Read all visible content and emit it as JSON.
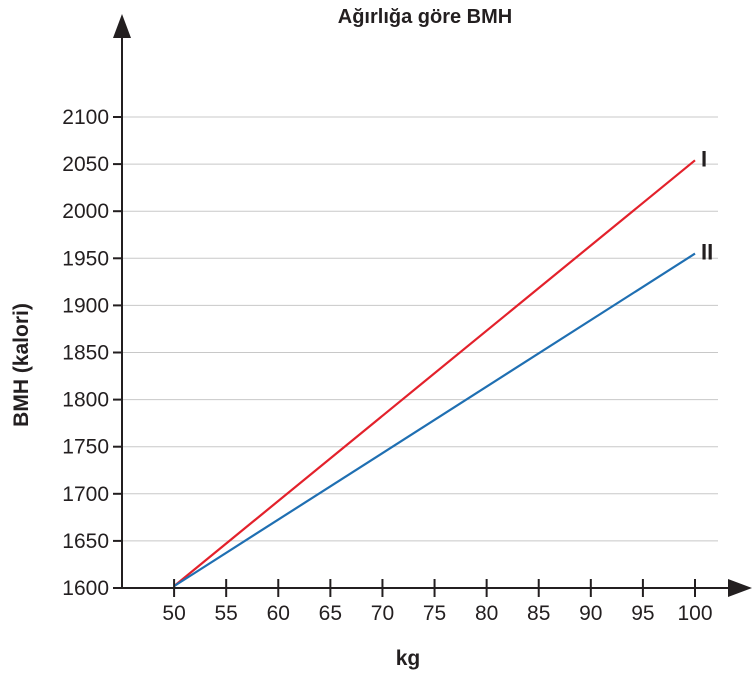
{
  "chart_data": {
    "type": "line",
    "title": "Ağırlığa göre BMH",
    "xlabel": "kg",
    "ylabel": "BMH (kalori)",
    "x_ticks": [
      50,
      55,
      60,
      65,
      70,
      75,
      80,
      85,
      90,
      95,
      100
    ],
    "y_ticks": [
      1600,
      1650,
      1700,
      1750,
      1800,
      1850,
      1900,
      1950,
      2000,
      2050,
      2100
    ],
    "xlim": [
      45,
      100
    ],
    "ylim": [
      1600,
      2100
    ],
    "grid": "horizontal",
    "series": [
      {
        "name": "I",
        "color": "#e3212b",
        "x": [
          50,
          100
        ],
        "y": [
          1602,
          2054
        ]
      },
      {
        "name": "II",
        "color": "#1f6fb2",
        "x": [
          50,
          100
        ],
        "y": [
          1602,
          1955
        ]
      }
    ]
  }
}
